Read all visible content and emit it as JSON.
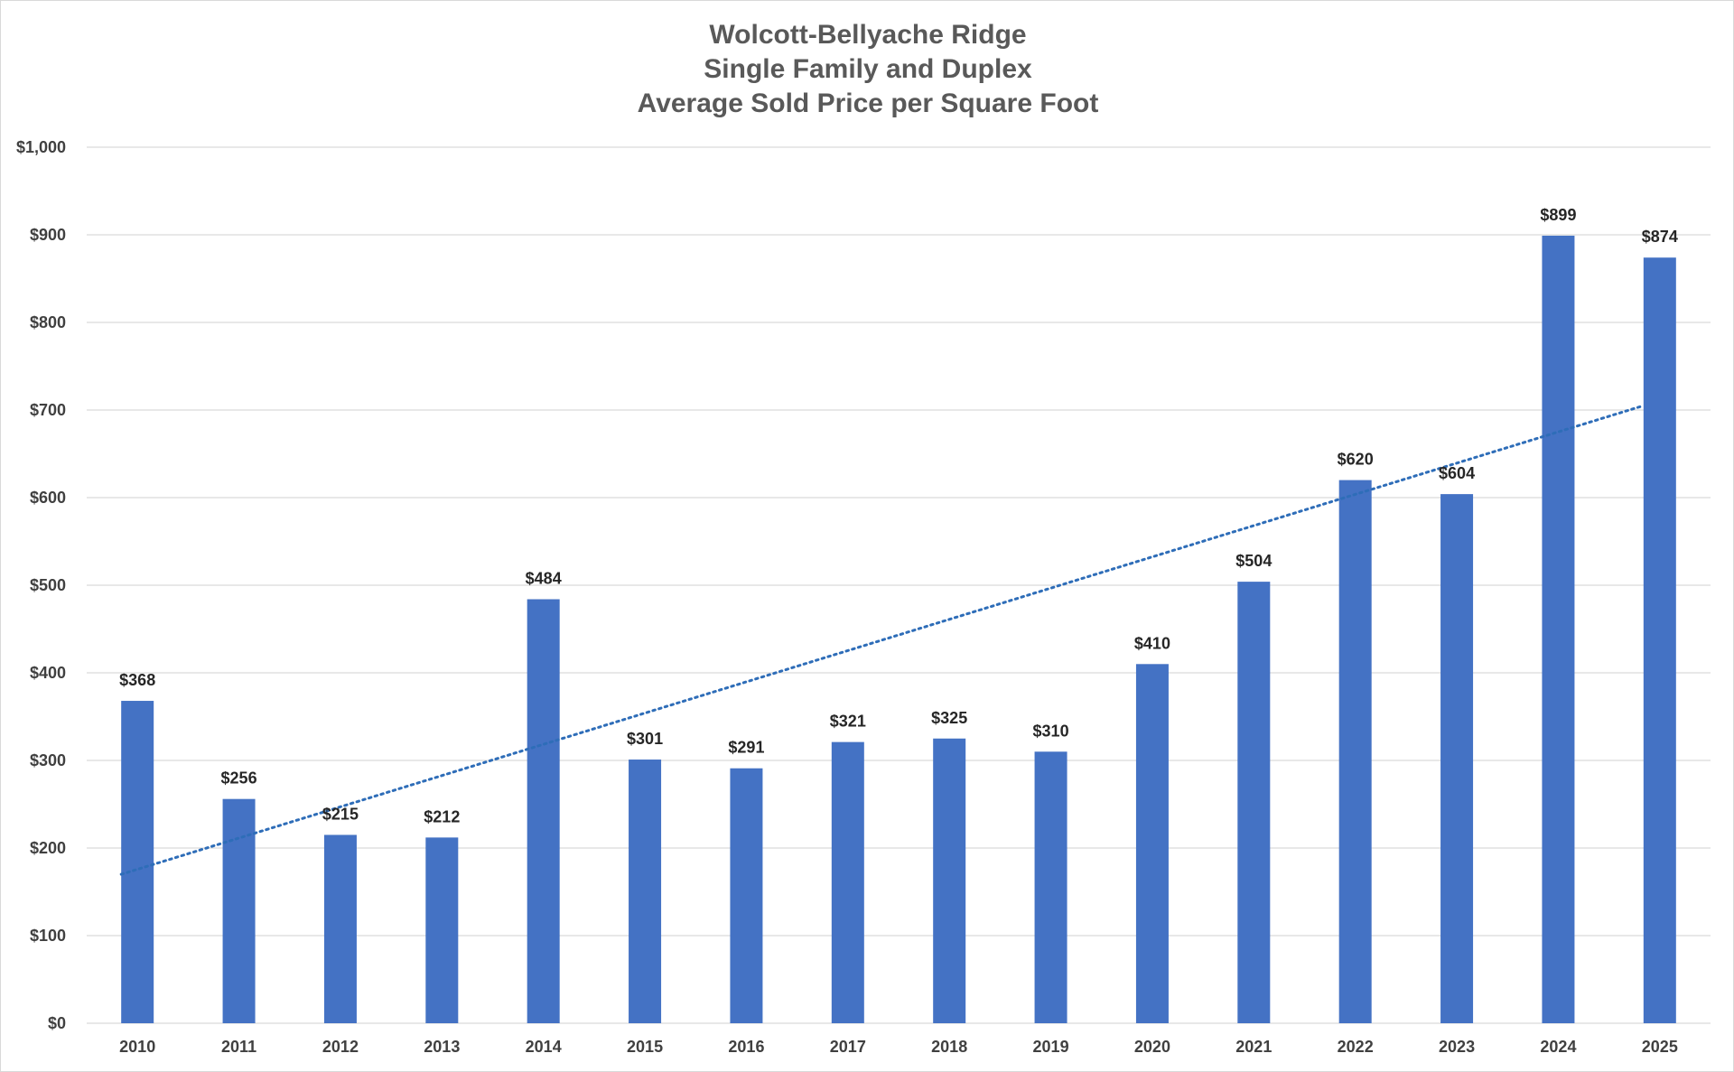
{
  "chart_data": {
    "type": "bar",
    "title_lines": [
      "Wolcott-Bellyache Ridge",
      "Single Family and Duplex",
      "Average Sold Price per Square Foot"
    ],
    "categories": [
      "2010",
      "2011",
      "2012",
      "2013",
      "2014",
      "2015",
      "2016",
      "2017",
      "2018",
      "2019",
      "2020",
      "2021",
      "2022",
      "2023",
      "2024",
      "2025"
    ],
    "values": [
      368,
      256,
      215,
      212,
      484,
      301,
      291,
      321,
      325,
      310,
      410,
      504,
      620,
      604,
      899,
      874
    ],
    "data_labels": [
      "$368",
      "$256",
      "$215",
      "$212",
      "$484",
      "$301",
      "$291",
      "$321",
      "$325",
      "$310",
      "$410",
      "$504",
      "$620",
      "$604",
      "$899",
      "$874"
    ],
    "ylim": [
      0,
      1000
    ],
    "y_ticks": [
      0,
      100,
      200,
      300,
      400,
      500,
      600,
      700,
      800,
      900,
      1000
    ],
    "y_tick_labels": [
      "$0",
      "$100",
      "$200",
      "$300",
      "$400",
      "$500",
      "$600",
      "$700",
      "$800",
      "$900",
      "$1,000"
    ],
    "trendline": {
      "type": "linear",
      "style": "dotted",
      "start_value": 170,
      "end_value": 705
    },
    "grid": true,
    "legend": "none",
    "colors": {
      "bar": "#4472C4",
      "trendline": "#2E6DB8",
      "gridline": "#D9D9D9"
    }
  }
}
